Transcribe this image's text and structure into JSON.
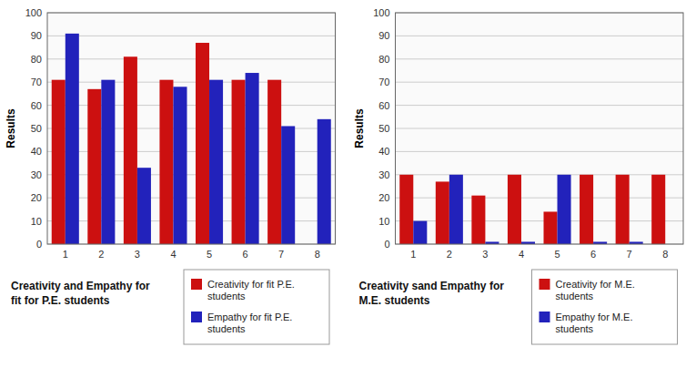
{
  "chart_data": [
    {
      "type": "bar",
      "title": "Creativity and Empathy for\nfit for P.E. students",
      "y_label": "Results",
      "categories": [
        "1",
        "2",
        "3",
        "4",
        "5",
        "6",
        "7",
        "8"
      ],
      "series": [
        {
          "name": "Creativity for fit P.E.\nstudents",
          "color": "#CC1010",
          "values": [
            71,
            67,
            81,
            71,
            87,
            71,
            71,
            0
          ]
        },
        {
          "name": "Empathy for fit P.E.\nstudents",
          "color": "#2222BB",
          "values": [
            91,
            71,
            33,
            68,
            71,
            74,
            51,
            54
          ]
        }
      ],
      "ylim": [
        0,
        100
      ],
      "yticks": [
        0,
        10,
        20,
        30,
        40,
        50,
        60,
        70,
        80,
        90,
        100
      ],
      "grid": true
    },
    {
      "type": "bar",
      "title": "Creativity sand Empathy for\nM.E. students",
      "y_label": "Results",
      "categories": [
        "1",
        "2",
        "3",
        "4",
        "5",
        "6",
        "7",
        "8"
      ],
      "series": [
        {
          "name": "Creativity for M.E.\nstudents",
          "color": "#CC1010",
          "values": [
            30,
            27,
            21,
            30,
            14,
            30,
            30,
            30
          ]
        },
        {
          "name": "Empathy for M.E.\nstudents",
          "color": "#2222BB",
          "values": [
            10,
            30,
            1,
            1,
            30,
            1,
            1,
            0
          ]
        }
      ],
      "ylim": [
        0,
        100
      ],
      "yticks": [
        0,
        10,
        20,
        30,
        40,
        50,
        60,
        70,
        80,
        90,
        100
      ],
      "grid": true
    }
  ]
}
